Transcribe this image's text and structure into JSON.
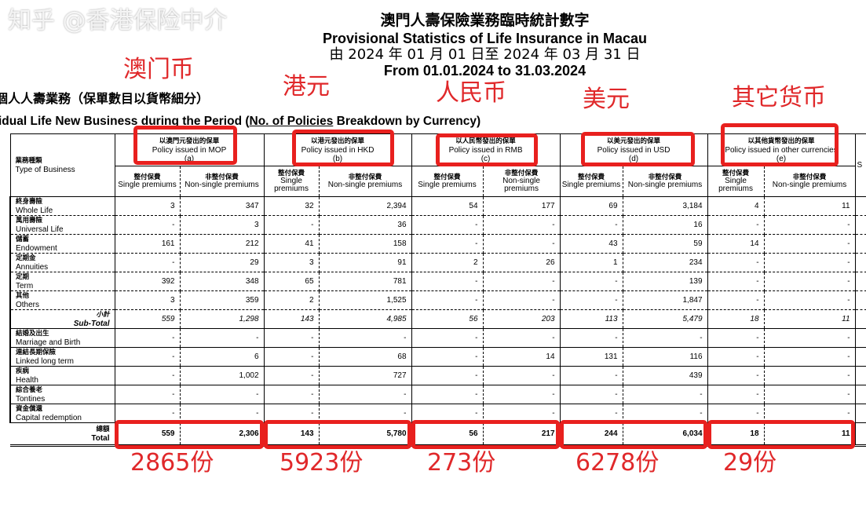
{
  "header": {
    "title_zh": "澳門人壽保險業務臨時統計數字",
    "title_en": "Provisional Statistics of Life Insurance in Macau",
    "period_zh": "由 2024 年 01 月 01 日至 2024 年 03 月 31 日",
    "period_en": "From 01.01.2024 to 31.03.2024",
    "section_zh": "個人人壽業務（保單數目以貨幣細分）",
    "section_en_pre": "idual Life New Business during the Period (",
    "section_en_u": "No. of Policies",
    "section_en_post": " Breakdown by Currency)"
  },
  "table": {
    "type_zh": "業務種類",
    "type_en": "Type of Business",
    "groups": [
      {
        "zh": "以澳門元發出的保單",
        "en": "Policy issued in MOP",
        "code": "(a)"
      },
      {
        "zh": "以港元發出的保單",
        "en": "Policy issued in HKD",
        "code": "(b)"
      },
      {
        "zh": "以人民幣發出的保單",
        "en": "Policy issued in RMB",
        "code": "(c)"
      },
      {
        "zh": "以美元發出的保單",
        "en": "Policy issued in USD",
        "code": "(d)"
      },
      {
        "zh": "以其他貨幣發出的保單",
        "en": "Policy issued in other currencies",
        "code": "(e)"
      }
    ],
    "single_zh": "整付保費",
    "single_en": "Single premiums",
    "nonsingle_zh": "非整付保費",
    "nonsingle_en": "Non-single premiums",
    "cutoff_col": "S",
    "rows": [
      {
        "zh": "終身壽險",
        "en": "Whole Life",
        "values": [
          "3",
          "347",
          "32",
          "2,394",
          "54",
          "177",
          "69",
          "3,184",
          "4",
          "11"
        ]
      },
      {
        "zh": "萬用壽險",
        "en": "Universal Life",
        "values": [
          "-",
          "3",
          "-",
          "36",
          "-",
          "-",
          "-",
          "16",
          "-",
          "-"
        ]
      },
      {
        "zh": "儲蓄",
        "en": "Endowment",
        "values": [
          "161",
          "212",
          "41",
          "158",
          "-",
          "-",
          "43",
          "59",
          "14",
          "-"
        ]
      },
      {
        "zh": "定期金",
        "en": "Annuities",
        "values": [
          "-",
          "29",
          "3",
          "91",
          "2",
          "26",
          "1",
          "234",
          "-",
          "-"
        ]
      },
      {
        "zh": "定期",
        "en": "Term",
        "values": [
          "392",
          "348",
          "65",
          "781",
          "-",
          "-",
          "-",
          "139",
          "-",
          "-"
        ]
      },
      {
        "zh": "其他",
        "en": "Others",
        "values": [
          "3",
          "359",
          "2",
          "1,525",
          "-",
          "-",
          "-",
          "1,847",
          "-",
          "-"
        ]
      },
      {
        "zh": "小計",
        "en": "Sub-Total",
        "kind": "sub",
        "values": [
          "559",
          "1,298",
          "143",
          "4,985",
          "56",
          "203",
          "113",
          "5,479",
          "18",
          "11"
        ]
      },
      {
        "zh": "結婚及出生",
        "en": "Marriage and Birth",
        "values": [
          "-",
          "-",
          "-",
          "-",
          "-",
          "-",
          "-",
          "-",
          "-",
          "-"
        ]
      },
      {
        "zh": "連結長期保險",
        "en": "Linked long term",
        "values": [
          "-",
          "6",
          "-",
          "68",
          "-",
          "14",
          "131",
          "116",
          "-",
          "-"
        ]
      },
      {
        "zh": "疾病",
        "en": "Health",
        "values": [
          "-",
          "1,002",
          "-",
          "727",
          "-",
          "-",
          "-",
          "439",
          "-",
          "-"
        ]
      },
      {
        "zh": "綜合養老",
        "en": "Tontines",
        "values": [
          "-",
          "-",
          "-",
          "-",
          "-",
          "-",
          "-",
          "-",
          "-",
          "-"
        ]
      },
      {
        "zh": "資金償還",
        "en": "Capital redemption",
        "values": [
          "-",
          "-",
          "-",
          "-",
          "-",
          "-",
          "-",
          "-",
          "-",
          "-"
        ]
      },
      {
        "zh": "總額",
        "en": "Total",
        "kind": "tot",
        "values": [
          "559",
          "2,306",
          "143",
          "5,780",
          "56",
          "217",
          "244",
          "6,034",
          "18",
          "11"
        ]
      }
    ]
  },
  "annotations": {
    "currency_labels": [
      "澳门币",
      "港元",
      "人民币",
      "美元",
      "其它货币"
    ],
    "totals": [
      "2865份",
      "5923份",
      "273份",
      "6278份",
      "29份"
    ],
    "color": "#e0282a"
  },
  "watermark": "知乎 @香港保险中介"
}
